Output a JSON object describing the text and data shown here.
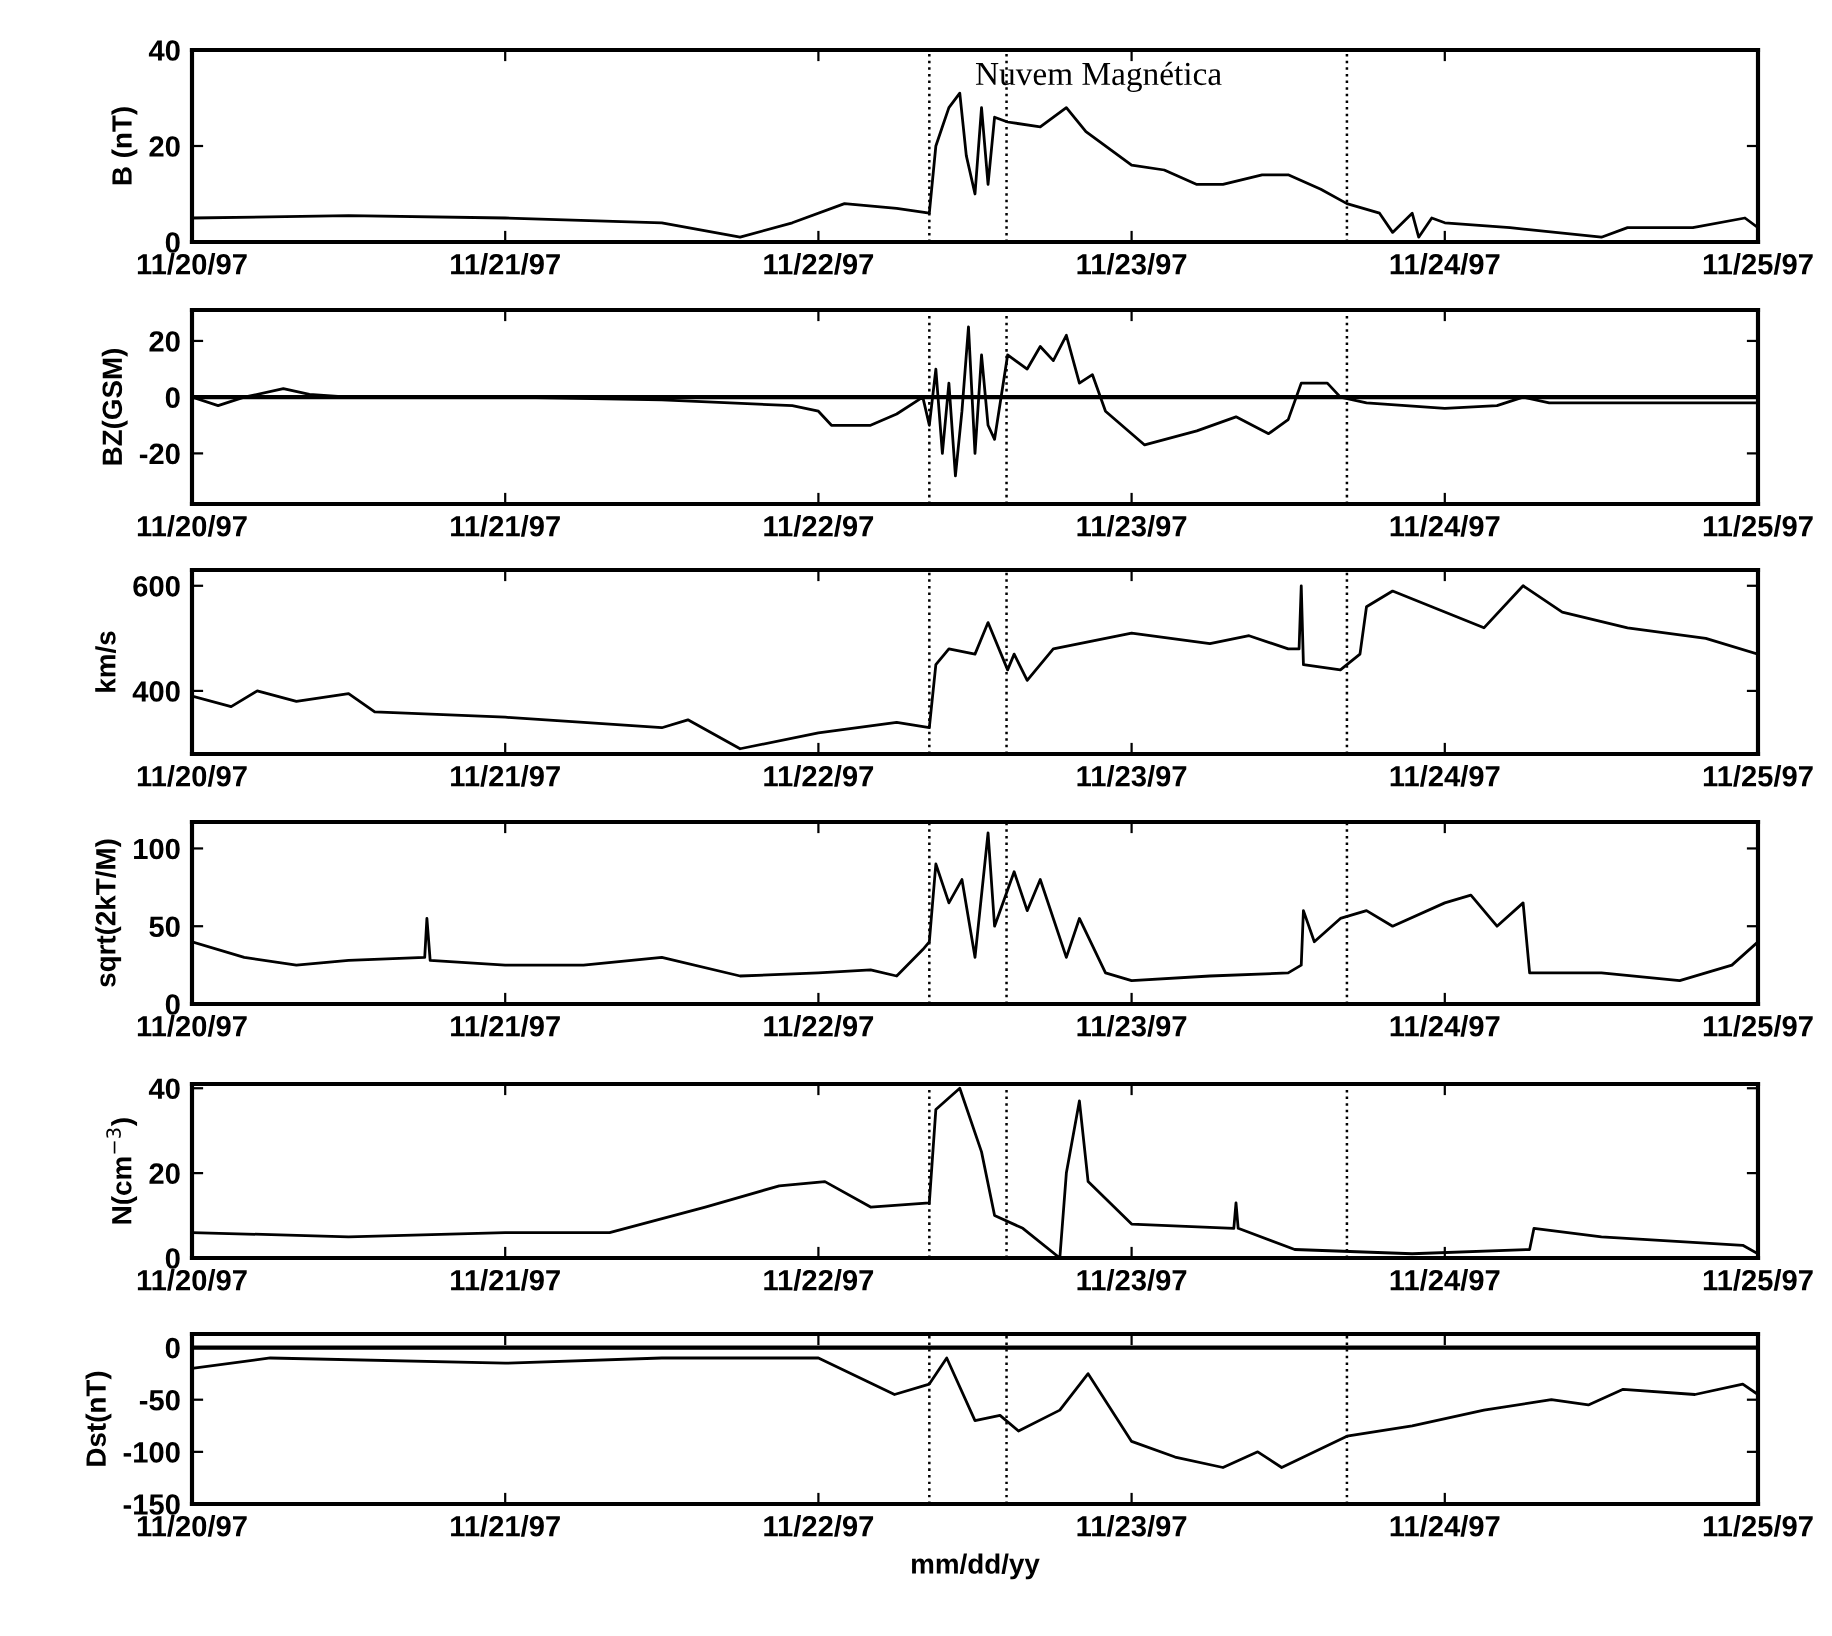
{
  "chart_data": [
    {
      "type": "line",
      "ylabel": "B (nT)",
      "annotations": [
        "Nuvem Magnética"
      ],
      "xlim": [
        "1997-11-20",
        "1997-11-25"
      ],
      "xticks": [
        {
          "value": "1997-11-20",
          "label": "11/20/97"
        },
        {
          "value": "1997-11-21",
          "label": "11/21/97"
        },
        {
          "value": "1997-11-22",
          "label": "11/22/97"
        },
        {
          "value": "1997-11-23",
          "label": "11/23/97"
        },
        {
          "value": "1997-11-24",
          "label": "11/24/97"
        },
        {
          "value": "1997-11-25",
          "label": "11/25/97"
        }
      ],
      "ylim": [
        0,
        40
      ],
      "yticks": [
        0,
        20,
        40
      ],
      "grid": false,
      "ref_lines": [
        {
          "axis": "x",
          "value": "1997-11-22T08:30",
          "color": "#000000",
          "line_style": "dotted"
        },
        {
          "axis": "x",
          "value": "1997-11-22T14:25",
          "color": "#000000",
          "line_style": "dotted"
        },
        {
          "axis": "x",
          "value": "1997-11-23T16:30",
          "color": "#000000",
          "line_style": "dotted"
        }
      ],
      "x": [
        "1997-11-20T00:00",
        "1997-11-20T12:00",
        "1997-11-21T00:00",
        "1997-11-21T12:00",
        "1997-11-21T18:00",
        "1997-11-21T22:00",
        "1997-11-22T02:00",
        "1997-11-22T06:00",
        "1997-11-22T08:30",
        "1997-11-22T09:00",
        "1997-11-22T09:30",
        "1997-11-22T10:00",
        "1997-11-22T10:50",
        "1997-11-22T11:20",
        "1997-11-22T12:00",
        "1997-11-22T12:30",
        "1997-11-22T13:00",
        "1997-11-22T13:30",
        "1997-11-22T14:30",
        "1997-11-22T17:00",
        "1997-11-22T19:00",
        "1997-11-22T20:30",
        "1997-11-23T00:00",
        "1997-11-23T02:30",
        "1997-11-23T05:00",
        "1997-11-23T07:00",
        "1997-11-23T10:00",
        "1997-11-23T12:00",
        "1997-11-23T14:30",
        "1997-11-23T16:30",
        "1997-11-23T19:00",
        "1997-11-23T20:00",
        "1997-11-23T21:30",
        "1997-11-23T22:00",
        "1997-11-23T23:00",
        "1997-11-24T00:00",
        "1997-11-24T05:00",
        "1997-11-24T12:00",
        "1997-11-24T14:00",
        "1997-11-24T19:00",
        "1997-11-24T23:00",
        "1997-11-25T00:00"
      ],
      "series": [
        {
          "color": "#000000",
          "values": [
            5,
            5.5,
            5,
            4,
            1,
            4,
            8,
            7,
            6,
            20,
            24,
            28,
            31,
            18,
            10,
            28,
            12,
            26,
            25,
            24,
            28,
            23,
            16,
            15,
            12,
            12,
            14,
            14,
            11,
            8,
            6,
            2,
            6,
            1,
            5,
            4,
            3,
            1,
            3,
            3,
            5,
            3
          ]
        }
      ]
    },
    {
      "type": "line",
      "ylabel": "BZ(GSM)",
      "xlim": [
        "1997-11-20",
        "1997-11-25"
      ],
      "xticks": [
        {
          "value": "1997-11-20",
          "label": "11/20/97"
        },
        {
          "value": "1997-11-21",
          "label": "11/21/97"
        },
        {
          "value": "1997-11-22",
          "label": "11/22/97"
        },
        {
          "value": "1997-11-23",
          "label": "11/23/97"
        },
        {
          "value": "1997-11-24",
          "label": "11/24/97"
        },
        {
          "value": "1997-11-25",
          "label": "11/25/97"
        }
      ],
      "ylim": [
        -38,
        31
      ],
      "yticks": [
        -20,
        0,
        20
      ],
      "grid": false,
      "ref_lines": [
        {
          "axis": "y",
          "value": 0,
          "color": "#000000",
          "line_style": "solid"
        },
        {
          "axis": "x",
          "value": "1997-11-22T08:30",
          "color": "#000000",
          "line_style": "dotted"
        },
        {
          "axis": "x",
          "value": "1997-11-22T14:25",
          "color": "#000000",
          "line_style": "dotted"
        },
        {
          "axis": "x",
          "value": "1997-11-23T16:30",
          "color": "#000000",
          "line_style": "dotted"
        }
      ],
      "x": [
        "1997-11-20T00:00",
        "1997-11-20T02:00",
        "1997-11-20T04:00",
        "1997-11-20T07:00",
        "1997-11-20T09:00",
        "1997-11-20T12:00",
        "1997-11-21T00:00",
        "1997-11-21T12:00",
        "1997-11-21T22:00",
        "1997-11-22T00:00",
        "1997-11-22T01:00",
        "1997-11-22T04:00",
        "1997-11-22T06:00",
        "1997-11-22T08:00",
        "1997-11-22T08:30",
        "1997-11-22T09:00",
        "1997-11-22T09:30",
        "1997-11-22T10:00",
        "1997-11-22T10:30",
        "1997-11-22T11:00",
        "1997-11-22T11:30",
        "1997-11-22T12:00",
        "1997-11-22T12:30",
        "1997-11-22T13:00",
        "1997-11-22T13:30",
        "1997-11-22T14:30",
        "1997-11-22T16:00",
        "1997-11-22T17:00",
        "1997-11-22T18:00",
        "1997-11-22T19:00",
        "1997-11-22T20:00",
        "1997-11-22T21:00",
        "1997-11-22T22:00",
        "1997-11-23T01:00",
        "1997-11-23T05:00",
        "1997-11-23T08:00",
        "1997-11-23T10:30",
        "1997-11-23T12:00",
        "1997-11-23T13:00",
        "1997-11-23T15:00",
        "1997-11-23T16:00",
        "1997-11-23T18:00",
        "1997-11-24T00:00",
        "1997-11-24T04:00",
        "1997-11-24T06:00",
        "1997-11-24T08:00",
        "1997-11-24T12:00",
        "1997-11-25T00:00"
      ],
      "series": [
        {
          "color": "#000000",
          "values": [
            0,
            -3,
            0,
            3,
            1,
            0,
            0,
            -1,
            -3,
            -5,
            -10,
            -10,
            -6,
            0,
            -10,
            10,
            -20,
            5,
            -28,
            -5,
            25,
            -20,
            15,
            -10,
            -15,
            15,
            10,
            18,
            13,
            22,
            5,
            8,
            -5,
            -17,
            -12,
            -7,
            -13,
            -8,
            5,
            5,
            0,
            -2,
            -4,
            -3,
            0,
            -2,
            -2,
            -2
          ]
        }
      ]
    },
    {
      "type": "line",
      "ylabel": "km/s",
      "xlim": [
        "1997-11-20",
        "1997-11-25"
      ],
      "xticks": [
        {
          "value": "1997-11-20",
          "label": "11/20/97"
        },
        {
          "value": "1997-11-21",
          "label": "11/21/97"
        },
        {
          "value": "1997-11-22",
          "label": "11/22/97"
        },
        {
          "value": "1997-11-23",
          "label": "11/23/97"
        },
        {
          "value": "1997-11-24",
          "label": "11/24/97"
        },
        {
          "value": "1997-11-25",
          "label": "11/25/97"
        }
      ],
      "ylim": [
        280,
        630
      ],
      "yticks": [
        400,
        600
      ],
      "grid": false,
      "ref_lines": [
        {
          "axis": "x",
          "value": "1997-11-22T08:30",
          "color": "#000000",
          "line_style": "dotted"
        },
        {
          "axis": "x",
          "value": "1997-11-22T14:25",
          "color": "#000000",
          "line_style": "dotted"
        },
        {
          "axis": "x",
          "value": "1997-11-23T16:30",
          "color": "#000000",
          "line_style": "dotted"
        }
      ],
      "x": [
        "1997-11-20T00:00",
        "1997-11-20T03:00",
        "1997-11-20T05:00",
        "1997-11-20T08:00",
        "1997-11-20T12:00",
        "1997-11-20T14:00",
        "1997-11-21T00:00",
        "1997-11-21T06:00",
        "1997-11-21T12:00",
        "1997-11-21T14:00",
        "1997-11-21T18:00",
        "1997-11-22T00:00",
        "1997-11-22T06:00",
        "1997-11-22T08:30",
        "1997-11-22T09:00",
        "1997-11-22T10:00",
        "1997-11-22T12:00",
        "1997-11-22T13:00",
        "1997-11-22T14:30",
        "1997-11-22T15:00",
        "1997-11-22T16:00",
        "1997-11-22T18:00",
        "1997-11-23T00:00",
        "1997-11-23T06:00",
        "1997-11-23T09:00",
        "1997-11-23T12:00",
        "1997-11-23T12:50",
        "1997-11-23T13:00",
        "1997-11-23T13:10",
        "1997-11-23T16:00",
        "1997-11-23T17:30",
        "1997-11-23T18:00",
        "1997-11-23T20:00",
        "1997-11-24T00:00",
        "1997-11-24T03:00",
        "1997-11-24T06:00",
        "1997-11-24T09:00",
        "1997-11-24T14:00",
        "1997-11-24T20:00",
        "1997-11-25T00:00"
      ],
      "series": [
        {
          "color": "#000000",
          "values": [
            390,
            370,
            400,
            380,
            395,
            360,
            350,
            340,
            330,
            345,
            290,
            320,
            340,
            330,
            450,
            480,
            470,
            530,
            440,
            470,
            420,
            480,
            510,
            490,
            505,
            480,
            480,
            600,
            450,
            440,
            470,
            560,
            590,
            550,
            520,
            600,
            550,
            520,
            500,
            470
          ]
        }
      ]
    },
    {
      "type": "line",
      "ylabel": "sqrt(2kT/M)",
      "xlim": [
        "1997-11-20",
        "1997-11-25"
      ],
      "xticks": [
        {
          "value": "1997-11-20",
          "label": "11/20/97"
        },
        {
          "value": "1997-11-21",
          "label": "11/21/97"
        },
        {
          "value": "1997-11-22",
          "label": "11/22/97"
        },
        {
          "value": "1997-11-23",
          "label": "11/23/97"
        },
        {
          "value": "1997-11-24",
          "label": "11/24/97"
        },
        {
          "value": "1997-11-25",
          "label": "11/25/97"
        }
      ],
      "ylim": [
        0,
        117
      ],
      "yticks": [
        0,
        50,
        100
      ],
      "grid": false,
      "ref_lines": [
        {
          "axis": "x",
          "value": "1997-11-22T08:30",
          "color": "#000000",
          "line_style": "dotted"
        },
        {
          "axis": "x",
          "value": "1997-11-22T14:25",
          "color": "#000000",
          "line_style": "dotted"
        },
        {
          "axis": "x",
          "value": "1997-11-23T16:30",
          "color": "#000000",
          "line_style": "dotted"
        }
      ],
      "x": [
        "1997-11-20T00:00",
        "1997-11-20T04:00",
        "1997-11-20T08:00",
        "1997-11-20T12:00",
        "1997-11-20T17:50",
        "1997-11-20T18:00",
        "1997-11-20T18:15",
        "1997-11-21T00:00",
        "1997-11-21T06:00",
        "1997-11-21T12:00",
        "1997-11-21T18:00",
        "1997-11-22T00:00",
        "1997-11-22T04:00",
        "1997-11-22T06:00",
        "1997-11-22T08:00",
        "1997-11-22T08:30",
        "1997-11-22T09:00",
        "1997-11-22T10:00",
        "1997-11-22T11:00",
        "1997-11-22T12:00",
        "1997-11-22T13:00",
        "1997-11-22T13:30",
        "1997-11-22T15:00",
        "1997-11-22T16:00",
        "1997-11-22T17:00",
        "1997-11-22T19:00",
        "1997-11-22T20:00",
        "1997-11-22T22:00",
        "1997-11-23T00:00",
        "1997-11-23T06:00",
        "1997-11-23T12:00",
        "1997-11-23T13:00",
        "1997-11-23T13:10",
        "1997-11-23T14:00",
        "1997-11-23T16:00",
        "1997-11-23T18:00",
        "1997-11-23T20:00",
        "1997-11-24T00:00",
        "1997-11-24T02:00",
        "1997-11-24T04:00",
        "1997-11-24T06:00",
        "1997-11-24T06:30",
        "1997-11-24T12:00",
        "1997-11-24T18:00",
        "1997-11-24T22:00",
        "1997-11-25T00:00"
      ],
      "series": [
        {
          "color": "#000000",
          "values": [
            40,
            30,
            25,
            28,
            30,
            55,
            28,
            25,
            25,
            30,
            18,
            20,
            22,
            18,
            35,
            40,
            90,
            65,
            80,
            30,
            110,
            50,
            85,
            60,
            80,
            30,
            55,
            20,
            15,
            18,
            20,
            25,
            60,
            40,
            55,
            60,
            50,
            65,
            70,
            50,
            65,
            20,
            20,
            15,
            25,
            40
          ]
        }
      ]
    },
    {
      "type": "line",
      "ylabel": "N(cm$^{−3}$)",
      "xlim": [
        "1997-11-20",
        "1997-11-25"
      ],
      "xticks": [
        {
          "value": "1997-11-20",
          "label": "11/20/97"
        },
        {
          "value": "1997-11-21",
          "label": "11/21/97"
        },
        {
          "value": "1997-11-22",
          "label": "11/22/97"
        },
        {
          "value": "1997-11-23",
          "label": "11/23/97"
        },
        {
          "value": "1997-11-24",
          "label": "11/24/97"
        },
        {
          "value": "1997-11-25",
          "label": "11/25/97"
        }
      ],
      "ylim": [
        0,
        41
      ],
      "yticks": [
        0,
        20,
        40
      ],
      "grid": false,
      "ref_lines": [
        {
          "axis": "x",
          "value": "1997-11-22T08:30",
          "color": "#000000",
          "line_style": "dotted"
        },
        {
          "axis": "x",
          "value": "1997-11-22T14:25",
          "color": "#000000",
          "line_style": "dotted"
        },
        {
          "axis": "x",
          "value": "1997-11-23T16:30",
          "color": "#000000",
          "line_style": "dotted"
        }
      ],
      "x": [
        "1997-11-20T00:00",
        "1997-11-20T12:00",
        "1997-11-21T00:00",
        "1997-11-21T08:00",
        "1997-11-21T15:20",
        "1997-11-21T21:00",
        "1997-11-22T00:30",
        "1997-11-22T04:00",
        "1997-11-22T08:30",
        "1997-11-22T09:00",
        "1997-11-22T10:50",
        "1997-11-22T12:30",
        "1997-11-22T13:30",
        "1997-11-22T15:40",
        "1997-11-22T18:30",
        "1997-11-22T19:00",
        "1997-11-22T20:00",
        "1997-11-22T20:40",
        "1997-11-23T00:00",
        "1997-11-23T07:50",
        "1997-11-23T08:00",
        "1997-11-23T08:10",
        "1997-11-23T12:30",
        "1997-11-23T21:30",
        "1997-11-24T06:30",
        "1997-11-24T06:50",
        "1997-11-24T12:00",
        "1997-11-24T22:50",
        "1997-11-25T00:00"
      ],
      "series": [
        {
          "color": "#000000",
          "values": [
            6,
            5,
            6,
            6,
            12,
            17,
            18,
            12,
            13,
            35,
            40,
            25,
            10,
            7,
            0,
            20,
            37,
            18,
            8,
            7,
            13,
            7,
            2,
            1,
            2,
            7,
            5,
            3,
            1
          ]
        }
      ]
    },
    {
      "type": "line",
      "ylabel": "Dst(nT)",
      "xlabel": "mm/dd/yy",
      "xlim": [
        "1997-11-20",
        "1997-11-25"
      ],
      "xticks": [
        {
          "value": "1997-11-20",
          "label": "11/20/97"
        },
        {
          "value": "1997-11-21",
          "label": "11/21/97"
        },
        {
          "value": "1997-11-22",
          "label": "11/22/97"
        },
        {
          "value": "1997-11-23",
          "label": "11/23/97"
        },
        {
          "value": "1997-11-24",
          "label": "11/24/97"
        },
        {
          "value": "1997-11-25",
          "label": "11/25/97"
        }
      ],
      "ylim": [
        -150,
        13
      ],
      "yticks": [
        -150,
        -100,
        -50,
        0
      ],
      "grid": false,
      "ref_lines": [
        {
          "axis": "y",
          "value": 0,
          "color": "#000000",
          "line_style": "solid"
        },
        {
          "axis": "x",
          "value": "1997-11-22T08:30",
          "color": "#000000",
          "line_style": "dotted"
        },
        {
          "axis": "x",
          "value": "1997-11-22T14:25",
          "color": "#000000",
          "line_style": "dotted"
        },
        {
          "axis": "x",
          "value": "1997-11-23T16:30",
          "color": "#000000",
          "line_style": "dotted"
        }
      ],
      "x": [
        "1997-11-20T00:00",
        "1997-11-20T06:00",
        "1997-11-21T00:00",
        "1997-11-21T12:00",
        "1997-11-22T00:00",
        "1997-11-22T05:50",
        "1997-11-22T08:30",
        "1997-11-22T09:50",
        "1997-11-22T12:00",
        "1997-11-22T13:55",
        "1997-11-22T15:20",
        "1997-11-22T18:30",
        "1997-11-22T20:40",
        "1997-11-23T00:00",
        "1997-11-23T03:20",
        "1997-11-23T07:00",
        "1997-11-23T09:40",
        "1997-11-23T11:30",
        "1997-11-23T16:30",
        "1997-11-23T21:30",
        "1997-11-24T03:00",
        "1997-11-24T08:10",
        "1997-11-24T11:00",
        "1997-11-24T13:40",
        "1997-11-24T19:10",
        "1997-11-24T22:50",
        "1997-11-25T00:00"
      ],
      "series": [
        {
          "color": "#000000",
          "values": [
            -20,
            -10,
            -15,
            -10,
            -10,
            -45,
            -35,
            -10,
            -70,
            -65,
            -80,
            -60,
            -25,
            -90,
            -105,
            -115,
            -100,
            -115,
            -85,
            -75,
            -60,
            -50,
            -55,
            -40,
            -45,
            -35,
            -45
          ]
        }
      ]
    }
  ]
}
